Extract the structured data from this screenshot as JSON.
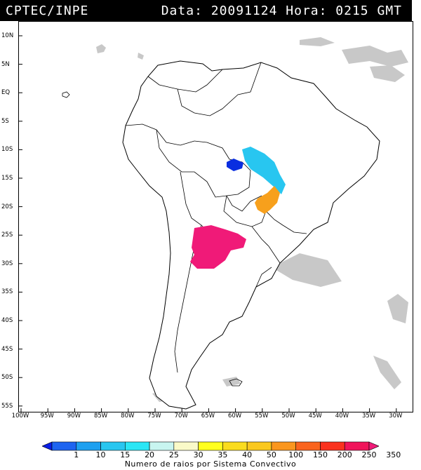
{
  "header": {
    "source": "CPTEC/INPE",
    "datetime": "Data: 20091124 Hora: 0215 GMT"
  },
  "map": {
    "lat_labels": [
      "10N",
      "5N",
      "EQ",
      "5S",
      "10S",
      "15S",
      "20S",
      "25S",
      "30S",
      "35S",
      "40S",
      "45S",
      "50S",
      "55S"
    ],
    "lon_labels": [
      "100W",
      "95W",
      "90W",
      "85W",
      "80W",
      "75W",
      "70W",
      "65W",
      "60W",
      "55W",
      "50W",
      "45W",
      "40W",
      "35W",
      "30W"
    ],
    "land_color": "#ffffff",
    "cloud_color": "#c8c8c8",
    "storm_systems": [
      {
        "name": "system-1",
        "color": "#0a2ee0"
      },
      {
        "name": "system-2",
        "color": "#28c6f0"
      },
      {
        "name": "system-3",
        "color": "#f7a01c"
      },
      {
        "name": "system-4",
        "color": "#f01a78"
      }
    ]
  },
  "legend": {
    "values": [
      "1",
      "10",
      "15",
      "20",
      "25",
      "30",
      "35",
      "40",
      "50",
      "100",
      "150",
      "200",
      "250",
      "350"
    ],
    "colors": [
      "#0a1ee6",
      "#1e64f0",
      "#1ea0f0",
      "#28c6f0",
      "#2ae6f5",
      "#c8f5f0",
      "#fafac8",
      "#ffff1e",
      "#fadc1e",
      "#fac81e",
      "#fa961e",
      "#fa641e",
      "#fa321e",
      "#f0145a",
      "#f01a78"
    ],
    "caption": "Numero de raios por Sistema Convectivo"
  }
}
